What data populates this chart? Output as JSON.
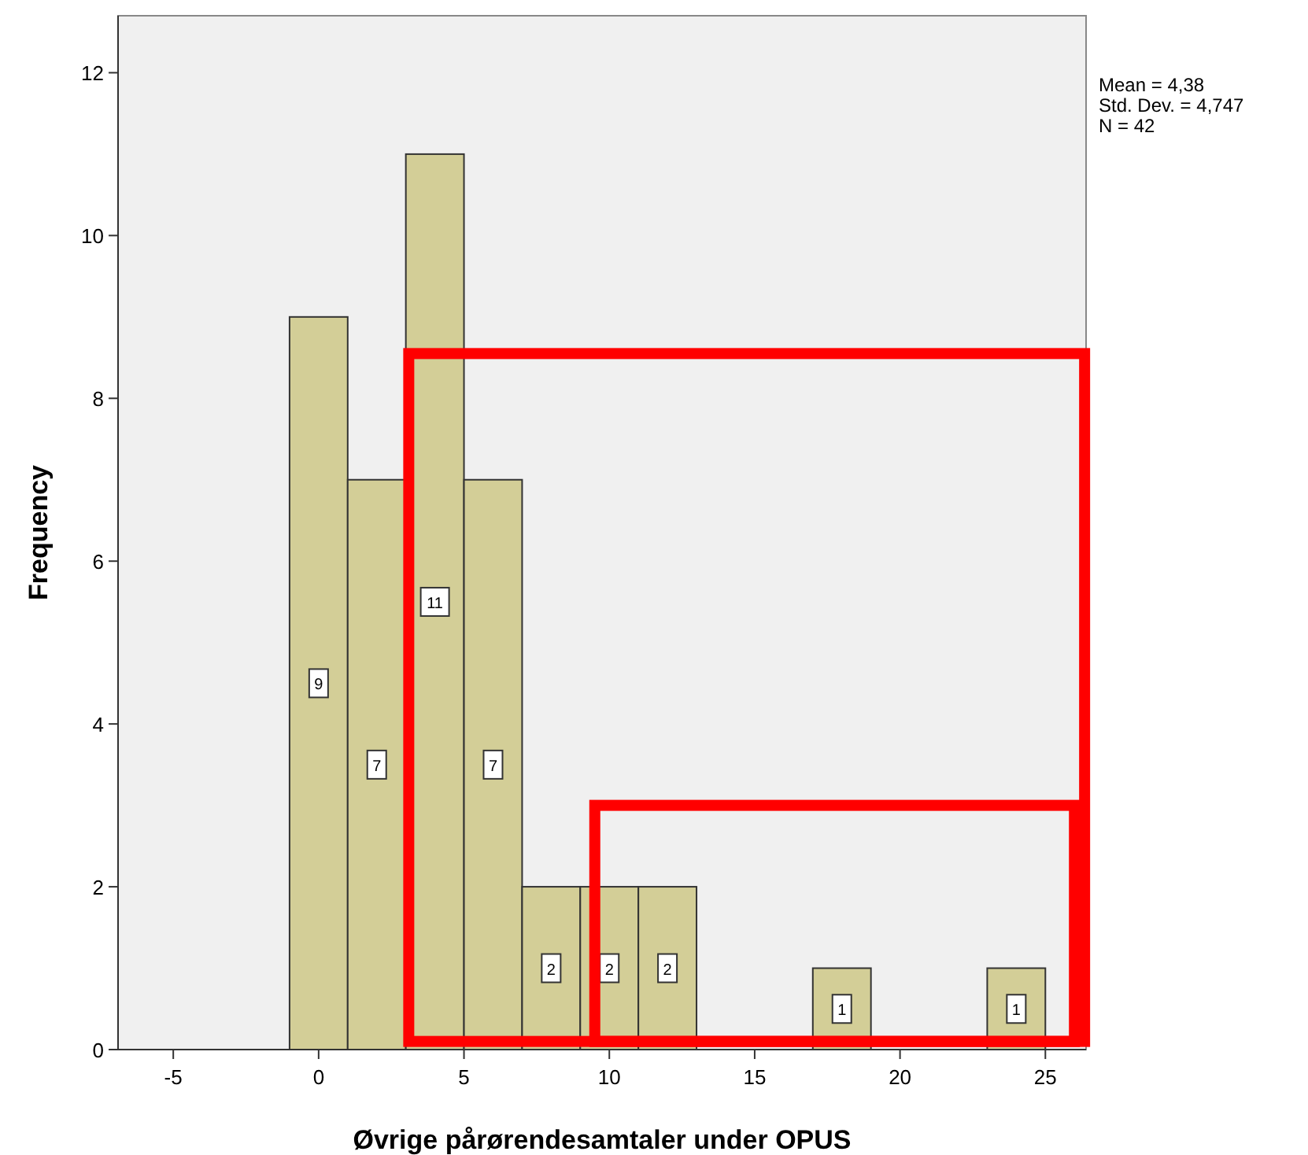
{
  "chart_data": {
    "type": "histogram",
    "xlabel": "Øvrige pårørendesamtaler under OPUS",
    "ylabel": "Frequency",
    "bins": [
      -1,
      1,
      3,
      5,
      7,
      9,
      11,
      13,
      15,
      17,
      19,
      21,
      23,
      25
    ],
    "values": [
      9,
      7,
      11,
      7,
      2,
      2,
      2,
      0,
      0,
      1,
      0,
      0,
      1
    ],
    "color": "#d3ce97",
    "value_labels": [
      "9",
      "7",
      "11",
      "7",
      "2",
      "2",
      "2",
      null,
      null,
      "1",
      null,
      null,
      "1"
    ],
    "grid": false,
    "xlim": [
      -6.9,
      26.4
    ],
    "xticks": [
      -5,
      0,
      5,
      10,
      15,
      20,
      25
    ],
    "ylim": [
      0,
      12.7
    ],
    "yticks": [
      0,
      2,
      4,
      6,
      8,
      10,
      12
    ],
    "annotations": [
      "Mean = 4,38",
      "Std. Dev. = 4,747",
      "N = 42"
    ]
  }
}
